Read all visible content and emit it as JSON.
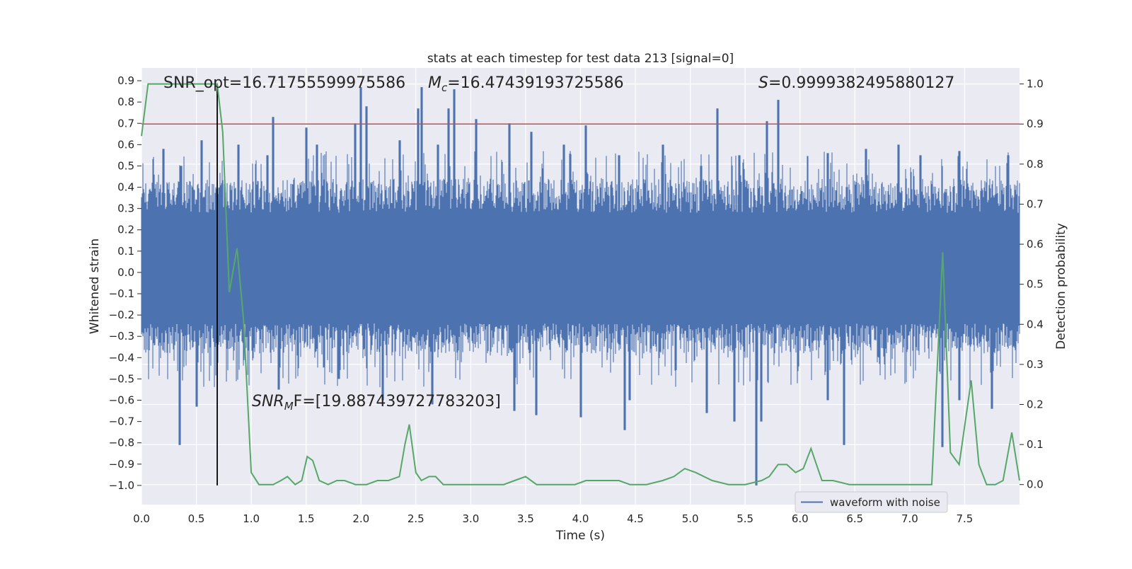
{
  "chart_data": {
    "type": "line",
    "title": "stats at each timestep for test data 213 [signal=0]",
    "xlabel": "Time (s)",
    "ylabel_left": "Whitened strain",
    "ylabel_right": "Detection probability",
    "xlim": [
      0.0,
      8.0
    ],
    "ylim_left": [
      -1.09,
      0.96
    ],
    "ylim_right": [
      -0.05,
      1.04
    ],
    "x_ticks": [
      "0.0",
      "0.5",
      "1.0",
      "1.5",
      "2.0",
      "2.5",
      "3.0",
      "3.5",
      "4.0",
      "4.5",
      "5.0",
      "5.5",
      "6.0",
      "6.5",
      "7.0",
      "7.5"
    ],
    "y_ticks_left": [
      "0.9",
      "0.8",
      "0.7",
      "0.6",
      "0.5",
      "0.4",
      "0.3",
      "0.2",
      "0.1",
      "0.0",
      "-0.1",
      "-0.2",
      "-0.3",
      "-0.4",
      "-0.5",
      "-0.6",
      "-0.7",
      "-0.8",
      "-0.9",
      "-1.0"
    ],
    "y_ticks_right": [
      "1.0",
      "0.9",
      "0.8",
      "0.7",
      "0.6",
      "0.5",
      "0.4",
      "0.3",
      "0.2",
      "0.1",
      "0.0"
    ],
    "grid": true,
    "legend": {
      "position": "lower-right",
      "entries": [
        "waveform with noise"
      ]
    },
    "threshold_right": 0.9,
    "marker_time": 0.69,
    "annotations": {
      "snr_opt": "SNR_opt=16.71755599975586",
      "mc_symbol": "M",
      "mc_sub": "c",
      "mc_value": "=16.47439193725586",
      "s_symbol": "S",
      "s_value": "=0.9999382495880127",
      "snr_mf_symbol": "SNR",
      "snr_mf_sub": "M",
      "snr_mf_value": "F=[19.887439727783203]"
    },
    "series": [
      {
        "name": "waveform with noise",
        "axis": "left",
        "color": "#4c72b0",
        "description": "dense whitened strain noise, core band approximately -0.25 to 0.30 with spikes",
        "spikes_up": [
          [
            0.2,
            0.58
          ],
          [
            0.36,
            0.5
          ],
          [
            0.55,
            0.62
          ],
          [
            0.88,
            0.6
          ],
          [
            1.15,
            0.55
          ],
          [
            1.2,
            0.73
          ],
          [
            1.5,
            0.68
          ],
          [
            1.6,
            0.6
          ],
          [
            1.95,
            0.7
          ],
          [
            2.0,
            0.87
          ],
          [
            2.05,
            0.78
          ],
          [
            2.35,
            0.62
          ],
          [
            2.52,
            0.77
          ],
          [
            2.55,
            0.87
          ],
          [
            2.7,
            0.6
          ],
          [
            2.8,
            0.77
          ],
          [
            2.85,
            0.86
          ],
          [
            3.05,
            0.72
          ],
          [
            3.35,
            0.7
          ],
          [
            3.55,
            0.66
          ],
          [
            3.85,
            0.6
          ],
          [
            4.05,
            0.69
          ],
          [
            4.35,
            0.55
          ],
          [
            4.75,
            0.6
          ],
          [
            5.1,
            0.5
          ],
          [
            5.25,
            0.77
          ],
          [
            5.45,
            0.55
          ],
          [
            5.7,
            0.71
          ],
          [
            5.8,
            0.81
          ],
          [
            6.25,
            0.56
          ],
          [
            6.6,
            0.58
          ],
          [
            6.9,
            0.6
          ],
          [
            7.1,
            0.55
          ],
          [
            7.45,
            0.57
          ],
          [
            7.9,
            0.55
          ]
        ],
        "spikes_down": [
          [
            0.35,
            -0.81
          ],
          [
            0.5,
            -0.63
          ],
          [
            1.25,
            -0.55
          ],
          [
            1.8,
            -0.5
          ],
          [
            2.2,
            -0.6
          ],
          [
            2.65,
            -0.62
          ],
          [
            3.4,
            -0.65
          ],
          [
            3.6,
            -0.67
          ],
          [
            4.0,
            -0.68
          ],
          [
            4.4,
            -0.74
          ],
          [
            4.45,
            -0.6
          ],
          [
            5.15,
            -0.66
          ],
          [
            5.4,
            -0.7
          ],
          [
            5.6,
            -1.0
          ],
          [
            5.65,
            -0.7
          ],
          [
            6.25,
            -0.6
          ],
          [
            6.4,
            -0.81
          ],
          [
            7.3,
            -0.82
          ],
          [
            7.45,
            -0.6
          ],
          [
            7.75,
            -0.64
          ]
        ]
      },
      {
        "name": "",
        "axis": "right",
        "color": "#55a868",
        "x": [
          0.0,
          0.06,
          0.15,
          0.3,
          0.45,
          0.6,
          0.69,
          0.74,
          0.8,
          0.87,
          0.93,
          1.0,
          1.07,
          1.13,
          1.2,
          1.27,
          1.33,
          1.4,
          1.46,
          1.51,
          1.56,
          1.62,
          1.7,
          1.78,
          1.85,
          1.95,
          2.05,
          2.15,
          2.25,
          2.35,
          2.4,
          2.44,
          2.5,
          2.55,
          2.62,
          2.68,
          2.75,
          2.85,
          3.0,
          3.15,
          3.3,
          3.4,
          3.5,
          3.6,
          3.8,
          3.95,
          4.05,
          4.15,
          4.25,
          4.35,
          4.45,
          4.6,
          4.75,
          4.85,
          4.95,
          5.05,
          5.2,
          5.35,
          5.5,
          5.65,
          5.72,
          5.8,
          5.88,
          5.96,
          6.03,
          6.1,
          6.15,
          6.2,
          6.3,
          6.45,
          6.6,
          6.75,
          6.9,
          7.05,
          7.12,
          7.2,
          7.3,
          7.37,
          7.45,
          7.56,
          7.63,
          7.7,
          7.78,
          7.85,
          7.93,
          8.0
        ],
        "y": [
          0.87,
          1.0,
          1.0,
          1.0,
          1.0,
          1.0,
          1.0,
          0.88,
          0.48,
          0.59,
          0.41,
          0.03,
          0.0,
          0.0,
          0.0,
          0.01,
          0.02,
          0.0,
          0.01,
          0.07,
          0.06,
          0.01,
          0.0,
          0.01,
          0.01,
          0.0,
          0.0,
          0.01,
          0.01,
          0.02,
          0.1,
          0.15,
          0.03,
          0.01,
          0.02,
          0.02,
          0.0,
          0.0,
          0.0,
          0.0,
          0.0,
          0.01,
          0.02,
          0.0,
          0.0,
          0.0,
          0.01,
          0.01,
          0.01,
          0.01,
          0.0,
          0.0,
          0.01,
          0.02,
          0.04,
          0.03,
          0.01,
          0.0,
          0.0,
          0.01,
          0.02,
          0.05,
          0.05,
          0.03,
          0.04,
          0.09,
          0.05,
          0.01,
          0.01,
          0.0,
          0.0,
          0.0,
          0.0,
          0.0,
          0.0,
          0.0,
          0.58,
          0.08,
          0.05,
          0.26,
          0.05,
          0.0,
          0.0,
          0.01,
          0.13,
          0.01
        ]
      },
      {
        "name": "",
        "axis": "right",
        "color": "#c44e52",
        "style": "horizontal threshold line",
        "y": 0.9
      }
    ]
  }
}
